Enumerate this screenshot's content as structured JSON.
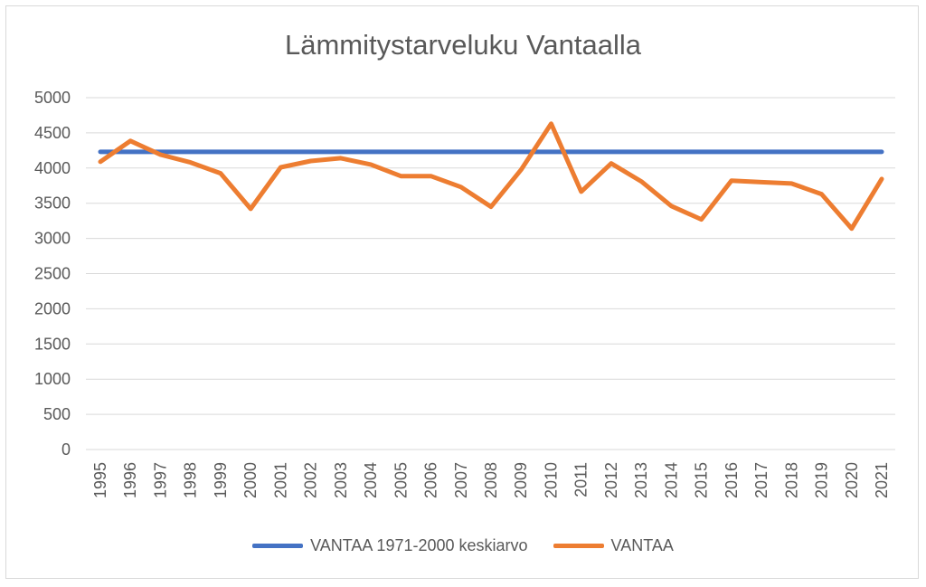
{
  "chart_data": {
    "type": "line",
    "title": "Lämmitystarveluku Vantaalla",
    "xlabel": "",
    "ylabel": "",
    "ylim": [
      0,
      5000
    ],
    "yticks": [
      "0",
      "500",
      "1000",
      "1500",
      "2000",
      "2500",
      "3000",
      "3500",
      "4000",
      "4500",
      "5000"
    ],
    "grid": true,
    "legend_position": "bottom",
    "x": [
      "1995",
      "1996",
      "1997",
      "1998",
      "1999",
      "2000",
      "2001",
      "2002",
      "2003",
      "2004",
      "2005",
      "2006",
      "2007",
      "2008",
      "2009",
      "2010",
      "2011",
      "2012",
      "2013",
      "2014",
      "2015",
      "2016",
      "2017",
      "2018",
      "2019",
      "2020",
      "2021"
    ],
    "series": [
      {
        "name": "VANTAA 1971-2000 keskiarvo",
        "color": "#4472c4",
        "values": [
          4230,
          4230,
          4230,
          4230,
          4230,
          4230,
          4230,
          4230,
          4230,
          4230,
          4230,
          4230,
          4230,
          4230,
          4230,
          4230,
          4230,
          4230,
          4230,
          4230,
          4230,
          4230,
          4230,
          4230,
          4230,
          4230,
          4230
        ]
      },
      {
        "name": "VANTAA",
        "color": "#ed7d31",
        "values": [
          4090,
          4385,
          4190,
          4080,
          3925,
          3420,
          4010,
          4100,
          4140,
          4050,
          3885,
          3885,
          3730,
          3450,
          3975,
          4630,
          3665,
          4065,
          3810,
          3460,
          3270,
          3820,
          3800,
          3780,
          3630,
          3140,
          3845
        ]
      }
    ]
  }
}
